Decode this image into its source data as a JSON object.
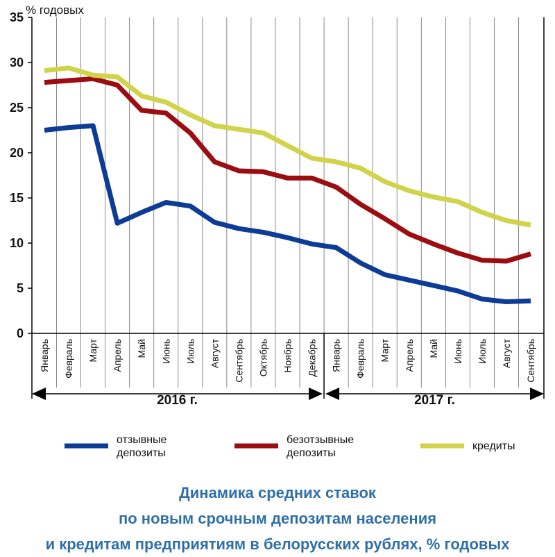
{
  "chart_data": {
    "type": "line",
    "y_unit": "% годовых",
    "ylim": [
      0,
      35
    ],
    "yticks": [
      0,
      5,
      10,
      15,
      20,
      25,
      30,
      35
    ],
    "grid": "vertical lines at year-2016 month boundaries",
    "categories": [
      "Январь",
      "Февраль",
      "Март",
      "Апрель",
      "Май",
      "Июнь",
      "Июль",
      "Август",
      "Сентябрь",
      "Октябрь",
      "Ноябрь",
      "Декабрь",
      "Январь",
      "Февраль",
      "Март",
      "Апрель",
      "Май",
      "Июнь",
      "Июль",
      "Август",
      "Сентябрь"
    ],
    "series": [
      {
        "name": "отзывные депозиты",
        "color": "#0d3c96",
        "values": [
          22.5,
          22.8,
          23.0,
          12.2,
          13.4,
          14.5,
          14.1,
          12.3,
          11.6,
          11.2,
          10.6,
          9.9,
          9.5,
          7.8,
          6.5,
          5.9,
          5.3,
          4.7,
          3.8,
          3.5,
          3.6
        ]
      },
      {
        "name": "безотзывные депозиты",
        "color": "#9b0d10",
        "values": [
          27.8,
          28.0,
          28.2,
          27.5,
          24.7,
          24.4,
          22.2,
          19.0,
          18.0,
          17.9,
          17.2,
          17.2,
          16.2,
          14.3,
          12.7,
          11.0,
          9.9,
          8.9,
          8.1,
          8.0,
          8.8
        ]
      },
      {
        "name": "кредиты",
        "color": "#d1d34a",
        "values": [
          29.1,
          29.4,
          28.6,
          28.4,
          26.3,
          25.6,
          24.2,
          23.0,
          22.6,
          22.2,
          20.8,
          19.4,
          19.0,
          18.3,
          16.8,
          15.8,
          15.1,
          14.6,
          13.4,
          12.5,
          12.0
        ]
      }
    ],
    "years": [
      {
        "label": "2016 г.",
        "from": 0,
        "to": 11
      },
      {
        "label": "2017 г.",
        "from": 12,
        "to": 20
      }
    ],
    "legend_position": "bottom",
    "title_lines": [
      "Динамика средних ставок",
      "по новым срочным депозитам населения",
      "и кредитам предприятиям в белорусских рублях, % годовых"
    ]
  },
  "legend": {
    "items": [
      {
        "line1": "отзывные",
        "line2": "депозиты",
        "color": "#0d3c96"
      },
      {
        "line1": "безотзывные",
        "line2": "депозиты",
        "color": "#9b0d10"
      },
      {
        "line1": "кредиты",
        "line2": "",
        "color": "#d1d34a"
      }
    ]
  }
}
